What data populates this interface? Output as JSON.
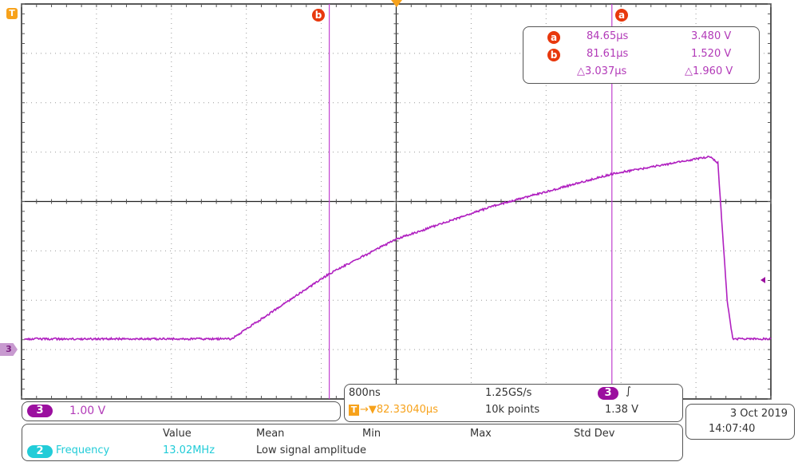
{
  "chart_data": {
    "type": "line",
    "title": "",
    "xlabel": "",
    "ylabel": "",
    "x_unit": "µs",
    "y_unit": "V",
    "xlim": [
      78.3,
      86.36
    ],
    "ylim": [
      -0.94,
      6.82
    ],
    "grid": true,
    "divisions": {
      "horizontal": 10,
      "vertical": 8
    },
    "series": [
      {
        "channel": "3",
        "color": "#b020c0",
        "x": [
          78.33,
          80.56,
          81.61,
          82.33,
          83.39,
          84.65,
          85.7,
          85.79,
          85.89,
          85.95,
          86.36
        ],
        "y": [
          0.24,
          0.24,
          1.52,
          2.2,
          2.86,
          3.48,
          3.82,
          3.7,
          1.0,
          0.24,
          0.24
        ]
      }
    ],
    "cursors": [
      {
        "label": "a",
        "x": 84.65,
        "y": 3.48
      },
      {
        "label": "b",
        "x": 81.61,
        "y": 1.52
      }
    ]
  },
  "markers": {
    "trigger_flag": "T",
    "channel_marker": "3",
    "cursor_a": "a",
    "cursor_b": "b"
  },
  "cursor_readout": {
    "a_label": "a",
    "a_time": "84.65µs",
    "a_volt": "3.480 V",
    "b_label": "b",
    "b_time": "81.61µs",
    "b_volt": "1.520 V",
    "delta_time": "△3.037µs",
    "delta_volt": "△1.960 V"
  },
  "channel": {
    "number": "3",
    "scale": "1.00 V",
    "color": "#9b0f9f"
  },
  "timebase": {
    "scale": "800ns",
    "sample_rate": "1.25GS/s",
    "trigger_channel": "3",
    "trigger_slope": "∫",
    "trigger_label": "T",
    "trigger_delay": "→▼82.33040µs",
    "points": "10k points",
    "trigger_level": "1.38 V"
  },
  "datetime": {
    "date": "3 Oct  2019",
    "time": "14:07:40"
  },
  "measurements": {
    "headers": [
      "Value",
      "Mean",
      "Min",
      "Max",
      "Std Dev"
    ],
    "channel": "2",
    "name": "Frequency",
    "value": "13.02MHz",
    "status": "Low signal amplitude",
    "color": "#22ccd8"
  }
}
